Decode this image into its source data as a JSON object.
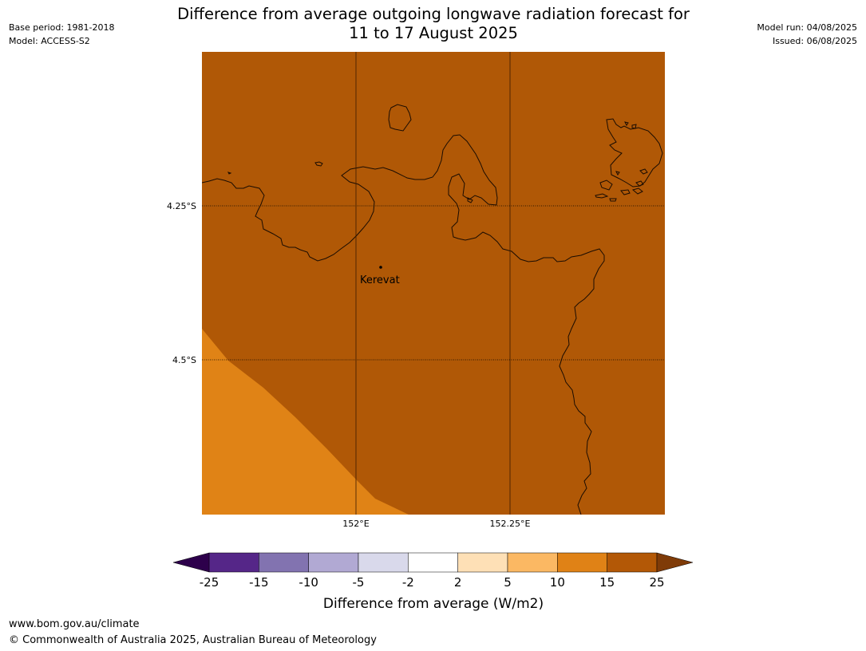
{
  "header": {
    "title_line1": "Difference from average outgoing longwave radiation forecast for",
    "title_line2": "11 to 17 August 2025",
    "base_period": "Base period: 1981-2018",
    "model": "Model: ACCESS-S2",
    "model_run": "Model run: 04/08/2025",
    "issued": "Issued: 06/08/2025"
  },
  "map": {
    "lat_labels": [
      "4.25°S",
      "4.5°S"
    ],
    "lon_labels": [
      "152°E",
      "152.25°E"
    ],
    "place": {
      "name": "Kerevat"
    },
    "background_color": "#b05806",
    "lower_zone_color": "#e08316"
  },
  "colorbar": {
    "title": "Difference from average (W/m2)",
    "tick_labels": [
      "-25",
      "-15",
      "-10",
      "-5",
      "-2",
      "2",
      "5",
      "10",
      "15",
      "25"
    ],
    "colors": [
      "#552688",
      "#8273b0",
      "#b1a9d3",
      "#d9d9eb",
      "#ffffff",
      "#fee0b6",
      "#fbb863",
      "#e08216",
      "#b35806"
    ],
    "under_color": "#2d004b",
    "over_color": "#7f3b08"
  },
  "footer": {
    "url": "www.bom.gov.au/climate",
    "copyright": "© Commonwealth of Australia 2025, Australian Bureau of Meteorology"
  }
}
